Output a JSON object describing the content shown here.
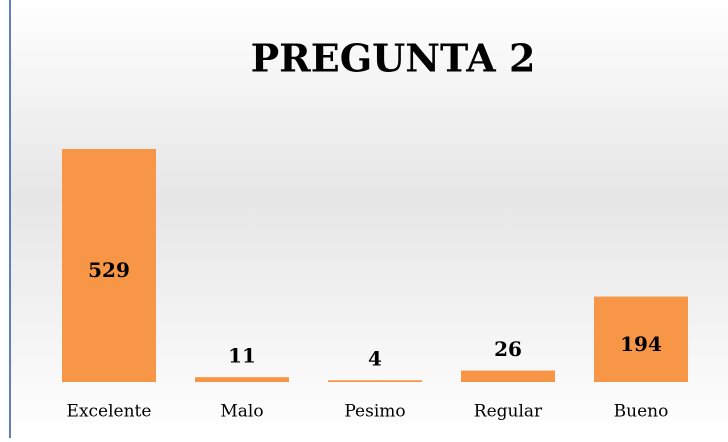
{
  "chart_data": {
    "type": "bar",
    "title": "PREGUNTA 2",
    "categories": [
      "Excelente",
      "Malo",
      "Pesimo",
      "Regular",
      "Bueno"
    ],
    "values": [
      529,
      11,
      4,
      26,
      194
    ],
    "color": "#f79646"
  }
}
